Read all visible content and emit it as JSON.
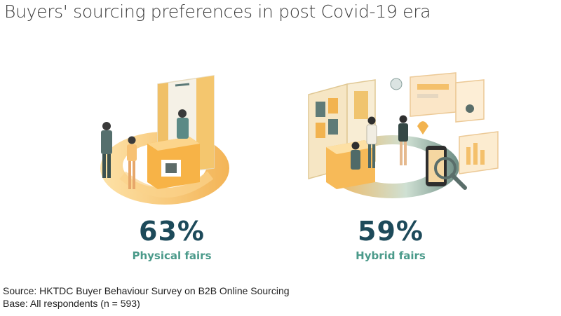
{
  "title": "Buyers' sourcing preferences in post Covid-19 era",
  "colors": {
    "number": "#1d4a5a",
    "label": "#4a9a8a",
    "accent": "#f5b95a"
  },
  "stats": [
    {
      "value": "63%",
      "label": "Physical fairs",
      "illustration": "physical-fair-illustration"
    },
    {
      "value": "59%",
      "label": "Hybrid fairs",
      "illustration": "hybrid-fair-illustration"
    }
  ],
  "footer": {
    "source": "Source: HKTDC Buyer Behaviour Survey on B2B Online Sourcing",
    "base": "Base: All respondents (n = 593)"
  }
}
